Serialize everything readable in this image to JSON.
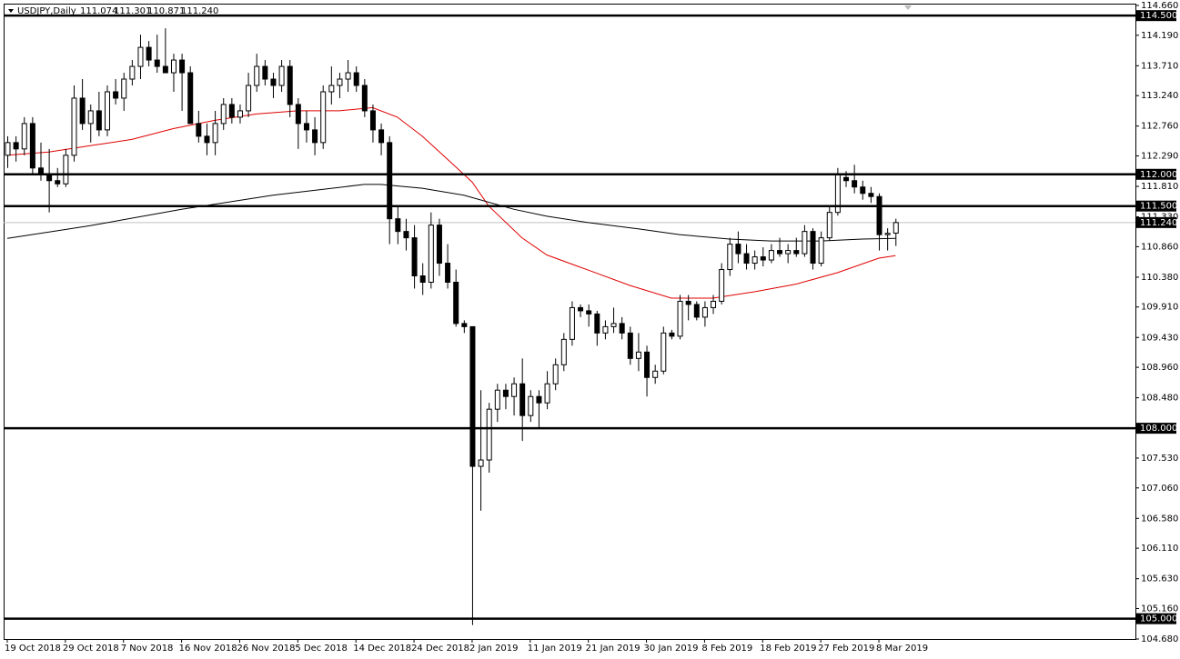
{
  "chart_data": {
    "type": "candlestick",
    "title": "USDJPY,Daily",
    "quote": [
      "111.074",
      "111.301",
      "110.871",
      "111.240"
    ],
    "up_color": "#ffffff",
    "down_color": "#000000",
    "open": [
      112.3,
      112.5,
      112.4,
      112.8,
      112.1,
      112.0,
      111.9,
      111.85,
      112.3,
      113.2,
      112.8,
      113.0,
      112.7,
      113.3,
      113.2,
      113.5,
      113.7,
      114.0,
      113.8,
      113.7,
      113.6,
      113.8,
      113.6,
      112.8,
      112.6,
      112.5,
      112.8,
      113.1,
      112.9,
      113.0,
      113.4,
      113.7,
      113.5,
      113.4,
      113.7,
      113.1,
      112.8,
      112.7,
      112.5,
      113.3,
      113.4,
      113.5,
      113.6,
      113.4,
      113.0,
      112.7,
      112.5,
      111.3,
      111.1,
      111.0,
      110.4,
      110.3,
      111.2,
      110.6,
      110.3,
      109.65,
      109.6,
      107.4,
      107.5,
      108.3,
      108.6,
      108.5,
      108.7,
      108.2,
      108.5,
      108.4,
      108.7,
      109.0,
      109.4,
      109.9,
      109.85,
      109.8,
      109.5,
      109.6,
      109.65,
      109.5,
      109.1,
      109.2,
      108.8,
      108.9,
      109.5,
      109.45,
      110.0,
      109.95,
      109.75,
      109.9,
      110.0,
      110.5,
      110.9,
      110.75,
      110.6,
      110.7,
      110.65,
      110.8,
      110.75,
      110.8,
      110.75,
      111.1,
      110.6,
      111.0,
      111.4,
      111.95,
      111.9,
      111.8,
      111.7,
      111.65,
      111.05,
      111.074
    ],
    "high": [
      112.6,
      112.6,
      112.9,
      112.9,
      112.5,
      112.4,
      112.1,
      112.4,
      113.4,
      113.5,
      113.1,
      113.3,
      113.4,
      113.5,
      113.6,
      113.8,
      114.2,
      114.1,
      114.2,
      114.3,
      113.9,
      113.9,
      113.7,
      113.0,
      112.8,
      113.0,
      113.2,
      113.2,
      113.1,
      113.6,
      113.9,
      113.8,
      113.6,
      113.8,
      113.8,
      113.2,
      113.0,
      112.9,
      113.4,
      113.7,
      113.6,
      113.8,
      113.7,
      113.5,
      113.1,
      112.8,
      112.6,
      111.5,
      111.3,
      111.2,
      110.6,
      111.4,
      111.3,
      110.9,
      110.5,
      109.7,
      109.6,
      108.6,
      108.4,
      108.7,
      108.7,
      108.8,
      109.1,
      108.6,
      108.6,
      108.9,
      109.1,
      109.5,
      110.0,
      109.95,
      109.95,
      109.85,
      109.7,
      109.9,
      109.75,
      109.6,
      109.5,
      109.3,
      109.0,
      109.6,
      109.55,
      110.1,
      110.1,
      110.0,
      110.0,
      110.1,
      110.6,
      111.0,
      111.1,
      110.9,
      110.8,
      110.85,
      110.9,
      111.0,
      110.9,
      111.0,
      111.2,
      111.15,
      111.1,
      111.5,
      112.1,
      112.05,
      112.15,
      111.9,
      111.8,
      111.7,
      111.15,
      111.301
    ],
    "low": [
      112.1,
      112.2,
      112.3,
      112.0,
      111.9,
      111.4,
      111.8,
      111.8,
      112.2,
      112.7,
      112.5,
      112.6,
      112.6,
      113.1,
      113.0,
      113.4,
      113.5,
      113.7,
      113.6,
      113.6,
      113.3,
      113.0,
      112.8,
      112.5,
      112.3,
      112.3,
      112.7,
      112.8,
      112.8,
      112.9,
      113.3,
      113.4,
      113.2,
      113.3,
      112.9,
      112.4,
      112.5,
      112.3,
      112.4,
      113.1,
      113.2,
      113.3,
      113.3,
      112.9,
      112.5,
      112.3,
      110.9,
      110.9,
      110.8,
      110.2,
      110.1,
      110.2,
      110.4,
      110.2,
      109.6,
      109.5,
      104.9,
      106.7,
      107.3,
      108.1,
      108.3,
      108.2,
      107.8,
      108.1,
      108.0,
      108.3,
      108.6,
      108.9,
      109.3,
      109.75,
      109.6,
      109.3,
      109.4,
      109.5,
      109.4,
      109.0,
      108.9,
      108.5,
      108.7,
      108.85,
      109.4,
      109.4,
      109.7,
      109.7,
      109.6,
      109.8,
      109.95,
      110.4,
      110.6,
      110.5,
      110.5,
      110.55,
      110.6,
      110.7,
      110.6,
      110.7,
      110.7,
      110.5,
      110.55,
      110.95,
      111.35,
      111.8,
      111.7,
      111.6,
      111.55,
      110.8,
      110.8,
      110.871
    ],
    "close": [
      112.5,
      112.4,
      112.8,
      112.1,
      112.0,
      111.9,
      111.85,
      112.3,
      113.2,
      112.8,
      113.0,
      112.7,
      113.3,
      113.2,
      113.5,
      113.7,
      114.0,
      113.8,
      113.7,
      113.6,
      113.8,
      113.6,
      112.8,
      112.6,
      112.5,
      112.8,
      113.1,
      112.9,
      113.0,
      113.4,
      113.7,
      113.5,
      113.4,
      113.7,
      113.1,
      112.8,
      112.7,
      112.5,
      113.3,
      113.4,
      113.5,
      113.6,
      113.4,
      113.0,
      112.7,
      112.5,
      111.3,
      111.1,
      111.0,
      110.4,
      110.3,
      111.2,
      110.6,
      110.3,
      109.65,
      109.6,
      107.4,
      107.5,
      108.3,
      108.6,
      108.5,
      108.7,
      108.2,
      108.5,
      108.4,
      108.7,
      109.0,
      109.4,
      109.9,
      109.85,
      109.8,
      109.5,
      109.6,
      109.65,
      109.5,
      109.1,
      109.2,
      108.8,
      108.9,
      109.5,
      109.45,
      110.0,
      109.95,
      109.75,
      109.9,
      110.0,
      110.5,
      110.9,
      110.75,
      110.6,
      110.7,
      110.65,
      110.8,
      110.75,
      110.8,
      110.75,
      111.1,
      110.6,
      111.0,
      111.4,
      112.0,
      111.9,
      111.8,
      111.7,
      111.65,
      111.05,
      111.07,
      111.24
    ],
    "lines": [
      {
        "color": "#e00000",
        "x": [
          0,
          5,
          10,
          15,
          20,
          25,
          30,
          35,
          40,
          44,
          47,
          50,
          53,
          56,
          58,
          62,
          65,
          70,
          75,
          80,
          85,
          90,
          95,
          100,
          105,
          107
        ],
        "values": [
          112.3,
          112.35,
          112.45,
          112.55,
          112.72,
          112.85,
          112.95,
          113.0,
          113.0,
          113.05,
          112.9,
          112.6,
          112.24,
          111.88,
          111.5,
          111.0,
          110.73,
          110.49,
          110.25,
          110.05,
          110.05,
          110.15,
          110.27,
          110.45,
          110.68,
          110.72
        ]
      },
      {
        "color": "#000000",
        "x": [
          0,
          10,
          21,
          32,
          43,
          45,
          50,
          55,
          61,
          65,
          70,
          76,
          81,
          87,
          92,
          98,
          103,
          107
        ],
        "values": [
          110.99,
          111.19,
          111.45,
          111.67,
          111.84,
          111.84,
          111.78,
          111.67,
          111.45,
          111.34,
          111.24,
          111.14,
          111.05,
          110.98,
          110.95,
          110.95,
          110.98,
          110.99
        ]
      }
    ],
    "ylim": [
      104.68,
      114.66
    ],
    "yticks": [
      {
        "value": 114.66,
        "label": "114.660"
      },
      {
        "value": 114.19,
        "label": "114.190"
      },
      {
        "value": 113.71,
        "label": "113.710"
      },
      {
        "value": 113.24,
        "label": "113.240"
      },
      {
        "value": 112.76,
        "label": "112.760"
      },
      {
        "value": 112.29,
        "label": "112.290"
      },
      {
        "value": 111.81,
        "label": "111.810"
      },
      {
        "value": 111.33,
        "label": "111.330"
      },
      {
        "value": 110.86,
        "label": "110.860"
      },
      {
        "value": 110.38,
        "label": "110.380"
      },
      {
        "value": 109.91,
        "label": "109.910"
      },
      {
        "value": 109.43,
        "label": "109.430"
      },
      {
        "value": 108.96,
        "label": "108.960"
      },
      {
        "value": 108.48,
        "label": "108.480"
      },
      {
        "value": 107.53,
        "label": "107.530"
      },
      {
        "value": 107.06,
        "label": "107.060"
      },
      {
        "value": 106.58,
        "label": "106.580"
      },
      {
        "value": 106.11,
        "label": "106.110"
      },
      {
        "value": 105.63,
        "label": "105.630"
      },
      {
        "value": 105.16,
        "label": "105.160"
      },
      {
        "value": 104.68,
        "label": "104.680"
      }
    ],
    "xticks": [
      {
        "value": 0,
        "label": "19 Oct 2018"
      },
      {
        "value": 7,
        "label": "29 Oct 2018"
      },
      {
        "value": 14,
        "label": "7 Nov 2018"
      },
      {
        "value": 21,
        "label": "16 Nov 2018"
      },
      {
        "value": 28,
        "label": "26 Nov 2018"
      },
      {
        "value": 35,
        "label": "5 Dec 2018"
      },
      {
        "value": 42,
        "label": "14 Dec 2018"
      },
      {
        "value": 49,
        "label": "24 Dec 2018"
      },
      {
        "value": 56,
        "label": "2 Jan 2019"
      },
      {
        "value": 63,
        "label": "11 Jan 2019"
      },
      {
        "value": 70,
        "label": "21 Jan 2019"
      },
      {
        "value": 77,
        "label": "30 Jan 2019"
      },
      {
        "value": 84,
        "label": "8 Feb 2019"
      },
      {
        "value": 91,
        "label": "18 Feb 2019"
      },
      {
        "value": 98,
        "label": "27 Feb 2019"
      },
      {
        "value": 105,
        "label": "8 Mar 2019"
      }
    ],
    "levels": [
      {
        "value": 114.5,
        "label": "114.500"
      },
      {
        "value": 112.0,
        "label": "112.000"
      },
      {
        "value": 111.5,
        "label": "111.500"
      },
      {
        "value": 108.0,
        "label": "108.000"
      },
      {
        "value": 105.0,
        "label": "105.000"
      }
    ],
    "last_price": {
      "value": 111.24,
      "label": "111.240"
    }
  }
}
